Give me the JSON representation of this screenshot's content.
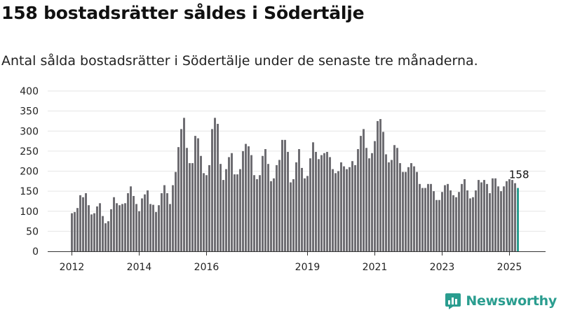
{
  "title": "158 bostadsrätter såldes i Södertälje",
  "subtitle": "Antal sålda bostadsrätter i Södertälje under de senaste tre månaderna.",
  "brand": {
    "name": "Newsworthy",
    "logo_icon": "newsworthy-logo-icon"
  },
  "colors": {
    "bar": "#6e6d72",
    "highlight": "#2a9d8f",
    "grid": "#e6e6e6",
    "axis": "#333333"
  },
  "chart_data": {
    "type": "bar",
    "title": "158 bostadsrätter såldes i Södertälje",
    "subtitle": "Antal sålda bostadsrätter i Södertälje under de senaste tre månaderna.",
    "xlabel": "",
    "ylabel": "",
    "ylim": [
      0,
      400
    ],
    "yticks": [
      0,
      50,
      100,
      150,
      200,
      250,
      300,
      350,
      400
    ],
    "xticks": [
      {
        "label": "2012",
        "index": 0
      },
      {
        "label": "2014",
        "index": 24
      },
      {
        "label": "2016",
        "index": 48
      },
      {
        "label": "2019",
        "index": 84
      },
      {
        "label": "2021",
        "index": 108
      },
      {
        "label": "2023",
        "index": 132
      },
      {
        "label": "2025",
        "index": 156
      }
    ],
    "grid": true,
    "start_period": "2012-01",
    "frequency": "monthly",
    "highlight_last": true,
    "last_value_label": "158",
    "values": [
      95,
      98,
      108,
      140,
      135,
      145,
      115,
      92,
      95,
      112,
      120,
      88,
      70,
      75,
      105,
      135,
      120,
      115,
      118,
      120,
      145,
      162,
      138,
      118,
      100,
      132,
      142,
      152,
      118,
      116,
      98,
      115,
      145,
      165,
      145,
      118,
      165,
      198,
      260,
      305,
      333,
      258,
      220,
      220,
      288,
      282,
      238,
      195,
      190,
      215,
      305,
      333,
      318,
      218,
      178,
      205,
      235,
      245,
      192,
      192,
      205,
      250,
      268,
      262,
      240,
      190,
      180,
      190,
      238,
      255,
      218,
      175,
      182,
      215,
      228,
      278,
      278,
      248,
      172,
      180,
      222,
      255,
      208,
      182,
      188,
      232,
      272,
      248,
      230,
      240,
      245,
      248,
      235,
      205,
      195,
      200,
      222,
      212,
      205,
      210,
      225,
      215,
      255,
      288,
      305,
      258,
      232,
      245,
      275,
      325,
      330,
      298,
      242,
      222,
      228,
      265,
      258,
      220,
      198,
      198,
      210,
      220,
      212,
      198,
      168,
      158,
      158,
      168,
      168,
      150,
      128,
      128,
      148,
      165,
      168,
      152,
      140,
      135,
      148,
      168,
      180,
      152,
      132,
      135,
      152,
      178,
      172,
      178,
      168,
      145,
      182,
      182,
      162,
      150,
      162,
      175,
      180,
      178,
      170,
      158
    ]
  }
}
